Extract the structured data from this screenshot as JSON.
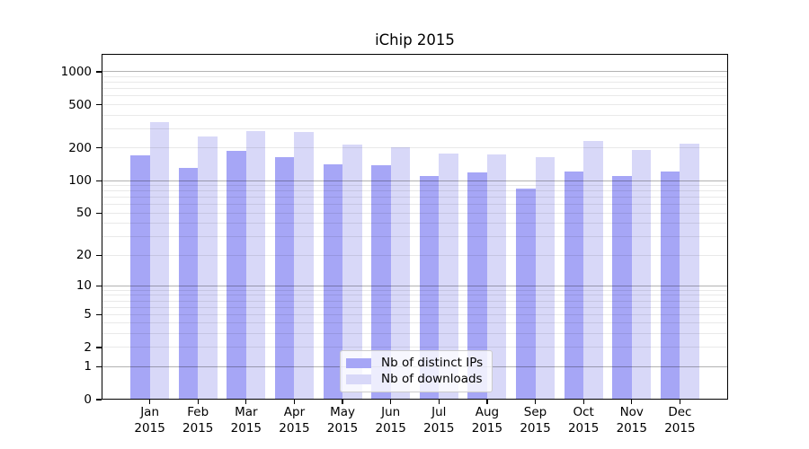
{
  "chart_data": {
    "type": "bar",
    "title": "iChip 2015",
    "yscale": "log1p",
    "ylim": [
      0,
      1460
    ],
    "grid": "on",
    "legend_position": "inside lower center",
    "y_ticks": [
      0,
      1,
      2,
      5,
      10,
      20,
      50,
      100,
      200,
      500,
      1000
    ],
    "major_grid_values": [
      1,
      10,
      100,
      1000
    ],
    "x_ticks": [
      {
        "month": "Jan",
        "year": "2015"
      },
      {
        "month": "Feb",
        "year": "2015"
      },
      {
        "month": "Mar",
        "year": "2015"
      },
      {
        "month": "Apr",
        "year": "2015"
      },
      {
        "month": "May",
        "year": "2015"
      },
      {
        "month": "Jun",
        "year": "2015"
      },
      {
        "month": "Jul",
        "year": "2015"
      },
      {
        "month": "Aug",
        "year": "2015"
      },
      {
        "month": "Sep",
        "year": "2015"
      },
      {
        "month": "Oct",
        "year": "2015"
      },
      {
        "month": "Nov",
        "year": "2015"
      },
      {
        "month": "Dec",
        "year": "2015"
      }
    ],
    "series": [
      {
        "name": "Nb of distinct IPs",
        "color": "#a6a6f6",
        "values": [
          170,
          132,
          188,
          165,
          142,
          140,
          111,
          120,
          84,
          122,
          111,
          121
        ]
      },
      {
        "name": "Nb of downloads",
        "color": "#d8d8f8",
        "values": [
          345,
          256,
          284,
          280,
          214,
          205,
          178,
          175,
          165,
          233,
          193,
          221
        ]
      }
    ]
  },
  "colors": {
    "minor_grid": "rgba(0,0,0,0.085)",
    "major_grid": "rgba(0,0,0,0.30)",
    "spine": "#000000",
    "legend_border": "#cccccc",
    "background": "#ffffff"
  }
}
